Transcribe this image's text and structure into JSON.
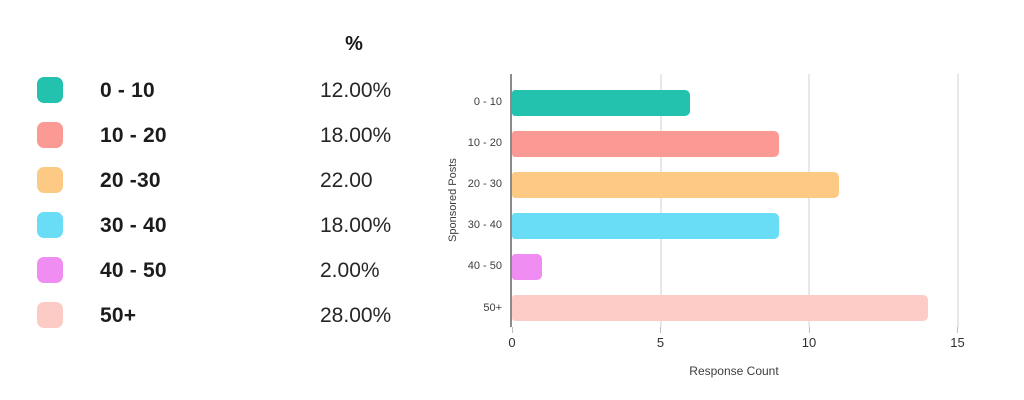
{
  "table": {
    "header_percent": "%",
    "rows": [
      {
        "label": "0 - 10",
        "value": "12.00%",
        "color": "#23C2AE"
      },
      {
        "label": "10 - 20",
        "value": "18.00%",
        "color": "#FB9A94"
      },
      {
        "label": "20 -30",
        "value": "22.00",
        "color": "#FCCA85"
      },
      {
        "label": "30 - 40",
        "value": "18.00%",
        "color": "#68DDF5"
      },
      {
        "label": "40 - 50",
        "value": "2.00%",
        "color": "#F08DF2"
      },
      {
        "label": "50+",
        "value": "28.00%",
        "color": "#FCCBC5"
      }
    ]
  },
  "chart_data": {
    "type": "bar",
    "orientation": "horizontal",
    "title": "",
    "categories": [
      "0 - 10",
      "10 - 20",
      "20 - 30",
      "30 - 40",
      "40 - 50",
      "50+"
    ],
    "values": [
      6,
      9,
      11,
      9,
      1,
      14
    ],
    "colors": [
      "#23C2AE",
      "#FB9A94",
      "#FCCA85",
      "#68DDF5",
      "#F08DF2",
      "#FDCCC6"
    ],
    "xlabel": "Response Count",
    "ylabel": "Sponsored Posts",
    "xlim": [
      0,
      15
    ],
    "xticks": [
      0,
      5,
      10,
      15
    ],
    "grid": true,
    "legend_position": "left-table",
    "axis_color": "#8C8C8C",
    "grid_color": "#E8E8E8"
  }
}
